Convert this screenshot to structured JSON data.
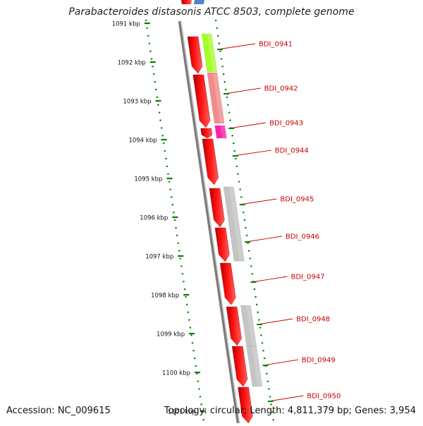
{
  "title": "Parabacteroides distasonis ATCC 8503, complete genome",
  "accession": "Accession: NC_009615",
  "summary": "Topology: circular; Length: 4,811,379 bp; Genes: 3,954",
  "colors": {
    "forward_cds": "#ff0000",
    "tick": "#008000",
    "label": "#cc0000",
    "backbone": "#808080"
  },
  "ticks": [
    "1091 kbp",
    "1092 kbp",
    "1093 kbp",
    "1094 kbp",
    "1095 kbp",
    "1096 kbp",
    "1097 kbp",
    "1098 kbp",
    "1099 kbp",
    "1100 kbp",
    "1101 kbp"
  ],
  "genes": [
    {
      "name": "BDI_0941",
      "cog_color": "#a8ff2a"
    },
    {
      "name": "BDI_0942",
      "cog_color": "#f08c8c"
    },
    {
      "name": "BDI_0943",
      "cog_color": "#ff22aa"
    },
    {
      "name": "BDI_0944",
      "cog_color": ""
    },
    {
      "name": "BDI_0945",
      "cog_color": "#c4c4c4"
    },
    {
      "name": "BDI_0946",
      "cog_color": "#c4c4c4"
    },
    {
      "name": "BDI_0947",
      "cog_color": ""
    },
    {
      "name": "BDI_0948",
      "cog_color": "#c4c4c4"
    },
    {
      "name": "BDI_0949",
      "cog_color": "#c4c4c4"
    },
    {
      "name": "BDI_0950",
      "cog_color": ""
    }
  ]
}
